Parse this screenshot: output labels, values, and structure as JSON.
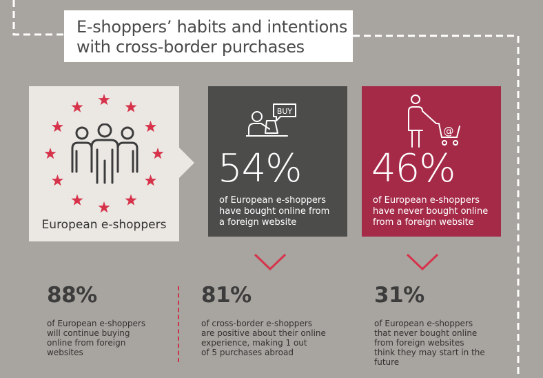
{
  "title": {
    "line1": "E-shoppers’ habits and intentions",
    "line2": "with cross-border purchases"
  },
  "eu_panel": {
    "label": "European e-shoppers",
    "icon": "people-group-icon",
    "star_color": "#d6334b"
  },
  "box_bought": {
    "icon": "buy-computer-icon",
    "icon_text": "BUY",
    "value": "54%",
    "desc": [
      "of European e-shoppers",
      "have bought online from",
      "a foreign website"
    ],
    "color": "#4c4c4b"
  },
  "box_never": {
    "icon": "person-shopping-cart-icon",
    "icon_text": "@",
    "value": "46%",
    "desc": [
      "of European e-shoppers",
      "have never bought online",
      "from a foreign website"
    ],
    "color": "#a52a48"
  },
  "stats": [
    {
      "value": "88%",
      "desc": [
        "of European e-shoppers",
        "will continue buying",
        "online from foreign",
        "websites"
      ]
    },
    {
      "value": "81%",
      "desc": [
        "of cross-border e-shoppers",
        "are positive about their online",
        "experience, making 1 out",
        "of 5 purchases abroad"
      ]
    },
    {
      "value": "31%",
      "desc": [
        "of European e-shoppers",
        "that never bought online",
        "from foreign websites",
        "think they may start in the",
        "future"
      ]
    }
  ],
  "accent": "#d6334b"
}
